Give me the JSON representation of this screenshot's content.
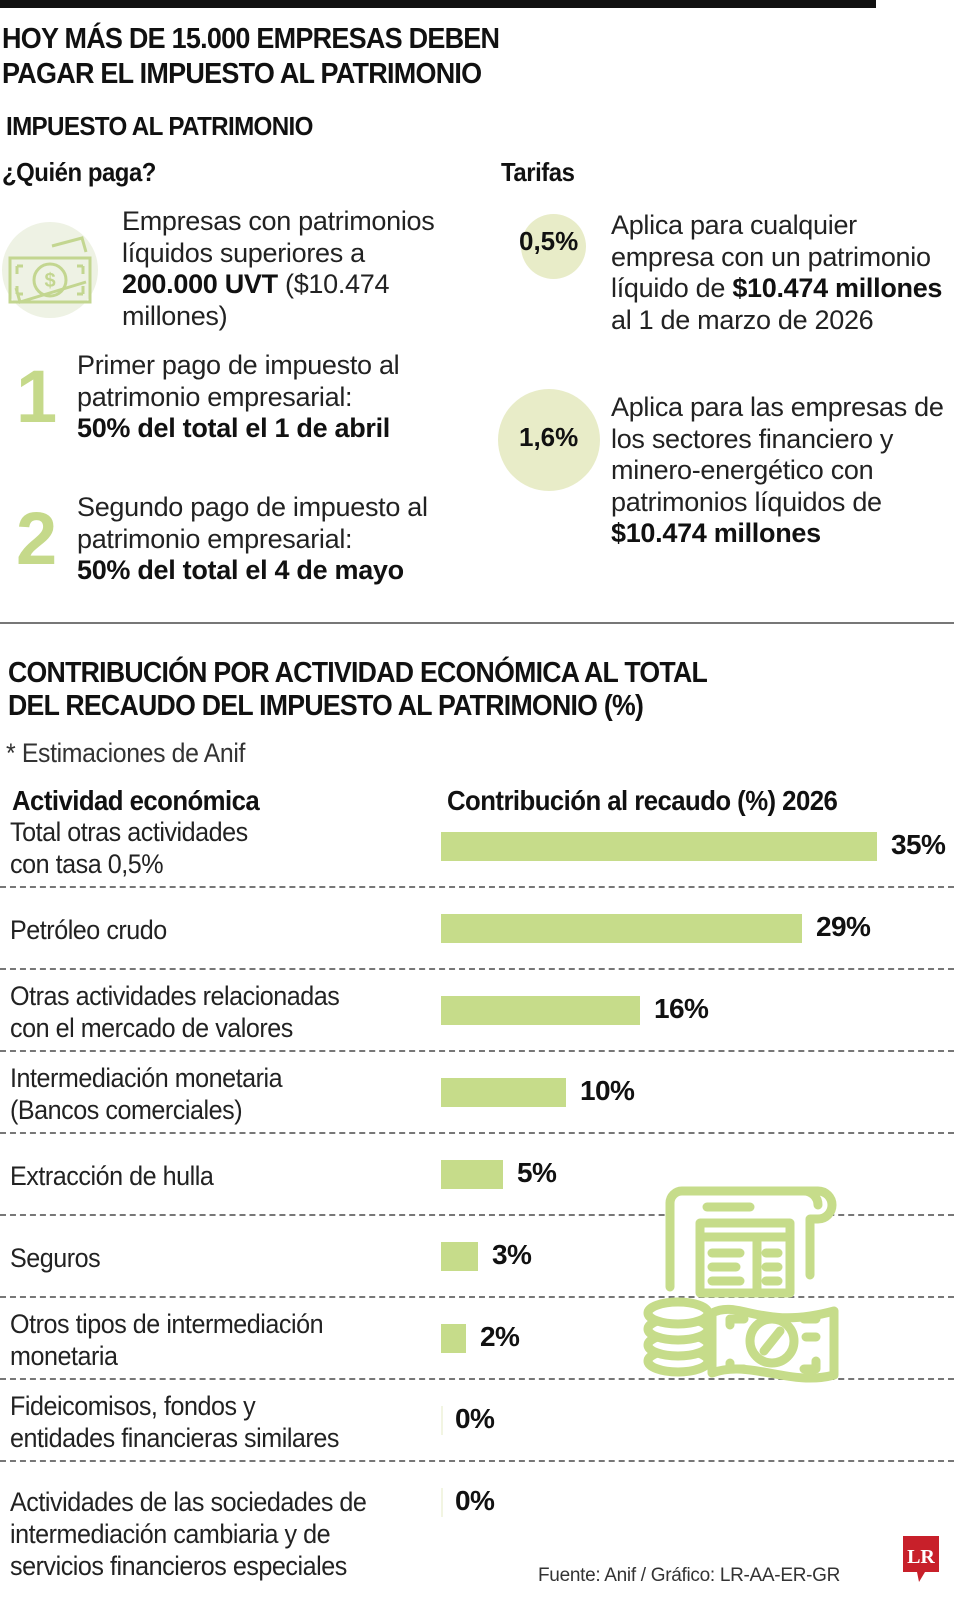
{
  "header": {
    "title_line1": "HOY MÁS DE 15.000 EMPRESAS DEBEN",
    "title_line2": "PAGAR EL IMPUESTO AL PATRIMONIO"
  },
  "tax_section": {
    "title": "IMPUESTO AL PATRIMONIO",
    "who_pays": {
      "heading": "¿Quién paga?",
      "icon": "money-bill-icon",
      "text_pre": "Empresas con patrimonios líquidos superiores a ",
      "text_bold": "200.000 UVT",
      "text_post": " ($10.474 millones)"
    },
    "payments": [
      {
        "number": "1",
        "text": "Primer pago de impuesto al patrimonio empresarial:",
        "bold": "50% del total el 1 de abril"
      },
      {
        "number": "2",
        "text": "Segundo pago de impuesto al patrimonio empresarial:",
        "bold": "50% del total el 4 de mayo"
      }
    ],
    "rates": {
      "heading": "Tarifas",
      "items": [
        {
          "rate": "0,5%",
          "text_pre": "Aplica para cualquier empresa con un patrimonio líquido de ",
          "text_bold": "$10.474 millones",
          "text_post": " al 1 de marzo de 2026"
        },
        {
          "rate": "1,6%",
          "text_pre": "Aplica para las empresas de los sectores financiero y minero-energético con patrimonios líquidos de ",
          "text_bold": "$10.474 millones",
          "text_post": ""
        }
      ]
    }
  },
  "chart_section": {
    "title_line1": "CONTRIBUCIÓN POR ACTIVIDAD ECONÓMICA AL TOTAL",
    "title_line2": "DEL RECAUDO DEL IMPUESTO AL PATRIMONIO (%)",
    "note": "* Estimaciones de Anif",
    "col_activity": "Actividad económica",
    "col_contribution": "Contribución al recaudo (%) 2026",
    "decorative_icon": "tax-document-coins-icon"
  },
  "chart_data": {
    "type": "bar",
    "orientation": "horizontal",
    "title": "CONTRIBUCIÓN POR ACTIVIDAD ECONÓMICA AL TOTAL DEL RECAUDO DEL IMPUESTO AL PATRIMONIO (%)",
    "subtitle": "* Estimaciones de Anif",
    "xlabel": "Contribución al recaudo (%) 2026",
    "ylabel": "Actividad económica",
    "categories": [
      "Total otras actividades con tasa 0,5%",
      "Petróleo crudo",
      "Otras actividades relacionadas con el mercado de valores",
      "Intermediación monetaria (Bancos comerciales)",
      "Extracción de hulla",
      "Seguros",
      "Otros tipos de intermediación monetaria",
      "Fideicomisos, fondos y entidades financieras similares",
      "Actividades de las sociedades de intermediación cambiaria y de servicios financieros especiales"
    ],
    "category_lines": [
      [
        "Total otras actividades",
        "con tasa 0,5%"
      ],
      [
        "Petróleo crudo"
      ],
      [
        "Otras actividades relacionadas",
        "con el mercado de valores"
      ],
      [
        "Intermediación monetaria",
        "(Bancos comerciales)"
      ],
      [
        "Extracción de hulla"
      ],
      [
        "Seguros"
      ],
      [
        "Otros tipos de intermediación",
        "monetaria"
      ],
      [
        "Fideicomisos, fondos y",
        "entidades financieras similares"
      ],
      [
        "Actividades de las sociedades de",
        "intermediación cambiaria y de",
        "servicios financieros especiales"
      ]
    ],
    "values": [
      35,
      29,
      16,
      10,
      5,
      3,
      2,
      0,
      0
    ],
    "value_labels": [
      "35%",
      "29%",
      "16%",
      "10%",
      "5%",
      "3%",
      "2%",
      "0%",
      "0%"
    ],
    "bar_color": "#c6dc8a",
    "xlim": [
      0,
      35
    ],
    "grid": false,
    "legend": null
  },
  "footer": {
    "source": "Fuente: Anif / Gráfico: LR-AA-ER-GR",
    "logo": "LR"
  },
  "colors": {
    "accent_green": "#c6dc8a",
    "circle_fill": "#e8ecc8",
    "logo_red": "#c8202a"
  }
}
